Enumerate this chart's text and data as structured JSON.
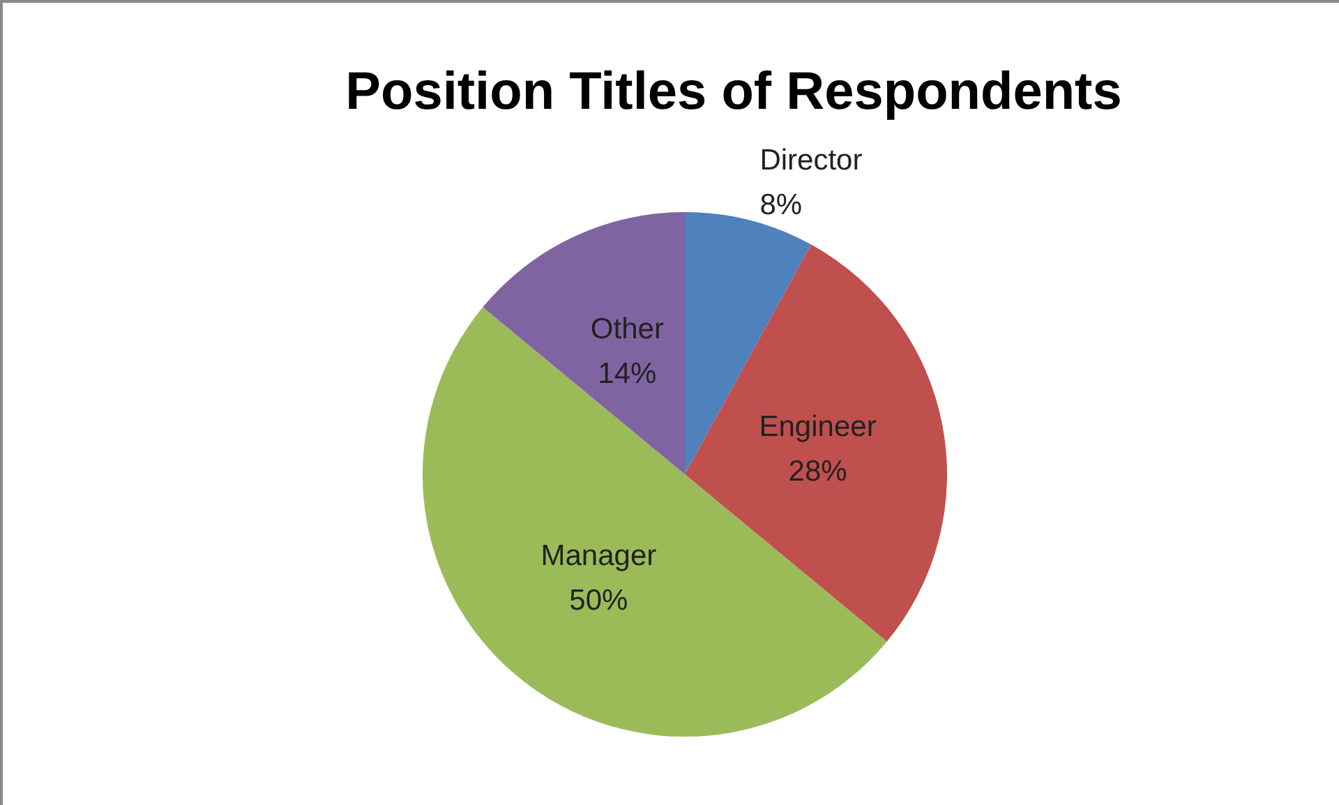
{
  "chart_data": {
    "type": "pie",
    "title": "Position Titles of Respondents",
    "categories": [
      "Director",
      "Engineer",
      "Manager",
      "Other"
    ],
    "values": [
      8,
      28,
      50,
      14
    ],
    "value_labels": [
      "8%",
      "28%",
      "50%",
      "14%"
    ],
    "colors": [
      "#4f81bd",
      "#c0504d",
      "#9bbb59",
      "#8064a2"
    ],
    "legend": false
  }
}
